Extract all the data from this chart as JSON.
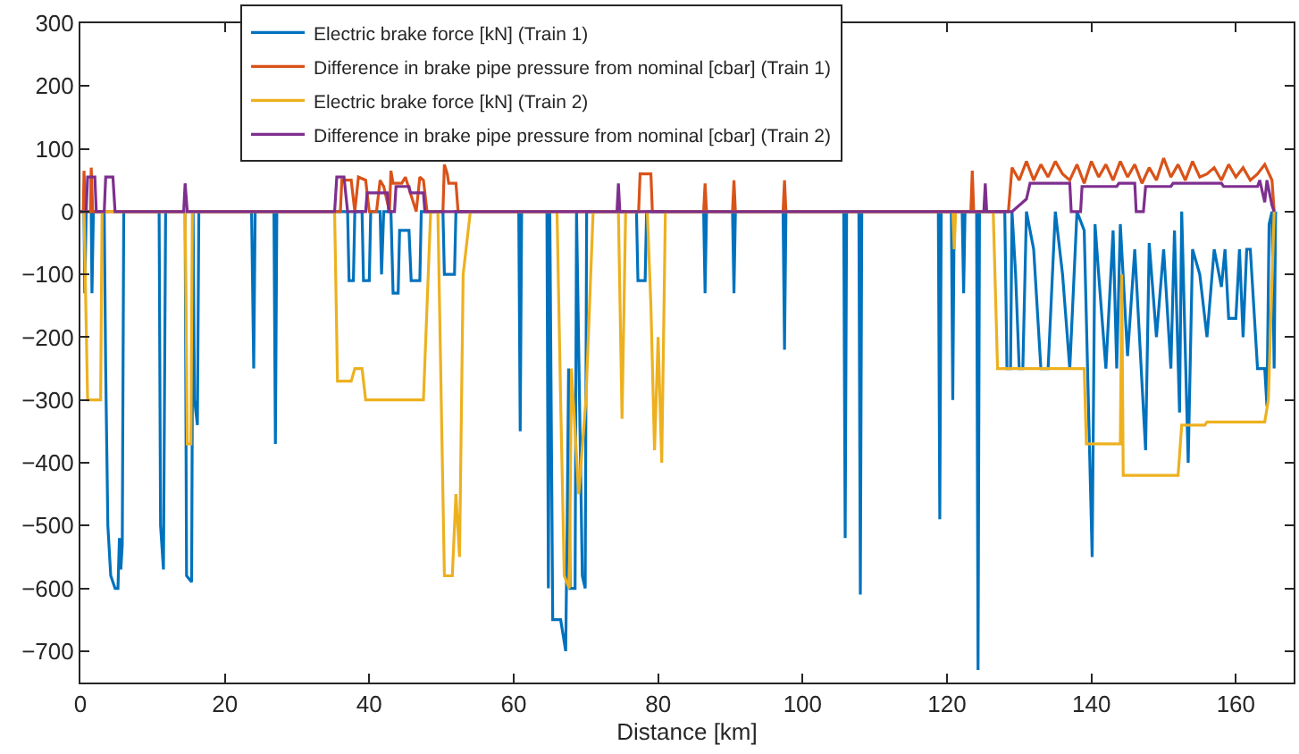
{
  "chart_data": {
    "type": "line",
    "xlabel": "Distance [km]",
    "xlim": [
      0,
      168
    ],
    "xticks": [
      0,
      20,
      40,
      60,
      80,
      100,
      120,
      140,
      160
    ],
    "ylim": [
      -750,
      300
    ],
    "yticks": [
      -700,
      -600,
      -500,
      -400,
      -300,
      -200,
      -100,
      0,
      100,
      200,
      300
    ],
    "grid": false,
    "legend": "top",
    "marker": "none",
    "line_style": "solid",
    "series": [
      {
        "name": "Electric brake force [kN] (Train 1)",
        "color": "#0072bd",
        "x": [
          0,
          0.5,
          0.6,
          0.8,
          1.5,
          1.6,
          1.8,
          3.3,
          3.5,
          3.8,
          4.2,
          4.8,
          5.2,
          5.4,
          5.6,
          5.8,
          6.0,
          10.9,
          11.1,
          11.5,
          11.8,
          14.5,
          14.7,
          15.4,
          15.6,
          15.8,
          16.2,
          16.4,
          23.7,
          24,
          24.2,
          26.8,
          27,
          27.2,
          37,
          37.2,
          37.8,
          38,
          39,
          39.2,
          40,
          40.2,
          41.5,
          41.7,
          42,
          43,
          43.3,
          44,
          44.2,
          45.5,
          45.8,
          47,
          47.2,
          50.2,
          50.4,
          51.8,
          52,
          60.7,
          60.9,
          61.1,
          64.6,
          64.8,
          65.0,
          65.4,
          66.5,
          67.2,
          67.4,
          67.6,
          67.8,
          68.5,
          68.7,
          69.5,
          69.9,
          70.1,
          77.0,
          77.2,
          78.2,
          78.4,
          86.3,
          86.5,
          86.7,
          90.3,
          90.5,
          90.7,
          97.3,
          97.5,
          97.7,
          105.7,
          105.9,
          106.1,
          107.8,
          108,
          108.2,
          118.8,
          119,
          119.2,
          120.6,
          120.8,
          121,
          122.1,
          122.3,
          122.5,
          124.1,
          124.3,
          124.5,
          128,
          128.3,
          128.8,
          129,
          129.5,
          130,
          130.5,
          131,
          132,
          133,
          134,
          135,
          136,
          137,
          138,
          139,
          140.1,
          140.5,
          141,
          142,
          143,
          143.5,
          144,
          145,
          146,
          147.5,
          148,
          149,
          150,
          151,
          151.5,
          152.2,
          152.5,
          153.4,
          154,
          155,
          156,
          157,
          158,
          158.5,
          159,
          160,
          160.5,
          161,
          161.5,
          162,
          163,
          164,
          164.3,
          164.6,
          165,
          165.3,
          165.5
        ],
        "values": [
          0,
          0,
          -130,
          0,
          0,
          -130,
          0,
          0,
          -250,
          -500,
          -580,
          -600,
          -600,
          -520,
          -570,
          -530,
          0,
          0,
          -500,
          -570,
          0,
          0,
          -580,
          -590,
          0,
          -300,
          -340,
          0,
          0,
          -250,
          0,
          0,
          -370,
          0,
          0,
          -110,
          -110,
          0,
          0,
          -110,
          -110,
          0,
          0,
          -100,
          0,
          0,
          -130,
          -130,
          -30,
          -30,
          -110,
          -110,
          0,
          0,
          -100,
          -100,
          0,
          0,
          -350,
          0,
          0,
          -600,
          0,
          -650,
          -650,
          -700,
          -500,
          -250,
          -600,
          -600,
          0,
          -580,
          -600,
          0,
          0,
          -110,
          -110,
          0,
          0,
          -130,
          0,
          0,
          -130,
          0,
          0,
          -220,
          0,
          0,
          -520,
          0,
          0,
          -610,
          0,
          0,
          -490,
          0,
          0,
          -300,
          0,
          0,
          -130,
          0,
          0,
          -730,
          0,
          0,
          -250,
          -250,
          0,
          -100,
          -250,
          -250,
          0,
          -60,
          -250,
          -250,
          0,
          -100,
          -250,
          0,
          -30,
          -550,
          -20,
          -100,
          -250,
          -30,
          -250,
          -20,
          -230,
          -60,
          -380,
          -50,
          -200,
          -60,
          -250,
          -30,
          -320,
          0,
          -400,
          -60,
          -100,
          -200,
          -60,
          -120,
          -60,
          -170,
          -170,
          -60,
          -200,
          -60,
          -60,
          -250,
          -250,
          -310,
          -20,
          0,
          -250,
          0
        ]
      },
      {
        "name": "Difference in brake pipe pressure from nominal [cbar] (Train 1)",
        "color": "#d95319",
        "x": [
          0,
          0.4,
          0.5,
          0.7,
          1.4,
          1.5,
          1.7,
          36,
          36.2,
          37.5,
          38,
          38.5,
          39.5,
          40,
          41,
          41.5,
          42,
          42.8,
          43,
          43.3,
          44.5,
          45,
          46.5,
          47,
          47.5,
          48,
          50.2,
          50.4,
          50.8,
          51,
          52,
          52.3,
          77.3,
          77.5,
          79,
          79.2,
          86.3,
          86.5,
          86.7,
          90.3,
          90.5,
          90.7,
          97.3,
          97.5,
          97.7,
          123.3,
          123.5,
          123.7,
          128.5,
          129,
          130,
          131,
          132,
          133,
          134,
          135,
          136,
          137,
          138,
          139,
          140,
          141,
          142,
          143,
          144,
          145,
          146,
          147,
          148,
          149,
          150,
          151,
          152,
          153,
          154,
          155,
          156,
          157,
          158,
          159,
          160,
          161,
          162,
          163,
          164,
          165,
          165.3
        ],
        "values": [
          0,
          0,
          65,
          0,
          0,
          70,
          0,
          0,
          50,
          50,
          0,
          55,
          50,
          0,
          0,
          50,
          40,
          0,
          65,
          45,
          45,
          55,
          0,
          55,
          50,
          0,
          0,
          75,
          60,
          45,
          45,
          0,
          0,
          60,
          60,
          0,
          0,
          45,
          0,
          0,
          50,
          0,
          0,
          50,
          0,
          0,
          65,
          0,
          0,
          70,
          50,
          80,
          50,
          75,
          55,
          80,
          60,
          50,
          75,
          45,
          80,
          55,
          75,
          50,
          80,
          55,
          75,
          45,
          70,
          50,
          85,
          55,
          75,
          50,
          80,
          55,
          60,
          70,
          50,
          75,
          55,
          70,
          50,
          60,
          75,
          50,
          0
        ]
      },
      {
        "name": "Electric brake force [kN] (Train 2)",
        "color": "#edb120",
        "x": [
          0,
          0.5,
          1,
          2.8,
          3,
          14.5,
          14.8,
          15.3,
          15.5,
          35.2,
          35.6,
          37.5,
          38,
          39,
          39.5,
          47.5,
          48.5,
          49.5,
          50.4,
          51.5,
          52,
          52.5,
          53,
          54,
          66,
          66.5,
          67,
          67.7,
          68,
          69,
          70,
          71,
          74.5,
          75,
          75.5,
          78.5,
          79,
          79.5,
          80,
          80.5,
          81,
          120.8,
          121,
          121.2,
          126.4,
          127,
          139,
          139.3,
          144,
          144.2,
          144.4,
          152,
          152.5,
          155.7,
          156,
          164,
          164.5,
          165.3
        ],
        "values": [
          0,
          0,
          -300,
          -300,
          0,
          0,
          -370,
          -370,
          0,
          0,
          -270,
          -270,
          -250,
          -250,
          -300,
          -300,
          0,
          0,
          -580,
          -580,
          -450,
          -550,
          -100,
          0,
          0,
          -300,
          -580,
          -600,
          -250,
          -450,
          -300,
          0,
          0,
          -330,
          0,
          0,
          -150,
          -380,
          -200,
          -400,
          0,
          0,
          -60,
          0,
          0,
          -250,
          -250,
          -370,
          -370,
          -100,
          -420,
          -420,
          -340,
          -340,
          -335,
          -335,
          -300,
          0
        ]
      },
      {
        "name": "Difference in brake pipe pressure from nominal [cbar] (Train 2)",
        "color": "#7e2f8e",
        "x": [
          0,
          0.8,
          1,
          2,
          2.2,
          3.3,
          3.5,
          4.5,
          4.8,
          14.3,
          14.5,
          14.8,
          35.2,
          35.5,
          36.5,
          37,
          39.5,
          39.7,
          42.5,
          42.7,
          43.5,
          43.7,
          45.5,
          45.7,
          47.5,
          47.7,
          74.3,
          74.5,
          74.7,
          125.1,
          125.3,
          125.5,
          128.5,
          129,
          131,
          131.5,
          137,
          137.2,
          138.5,
          138.7,
          143.5,
          143.8,
          146,
          146.2,
          147.2,
          147.5,
          151,
          151.3,
          158,
          158.3,
          163,
          163.3,
          164,
          164.3,
          165,
          165.3
        ],
        "values": [
          0,
          0,
          55,
          55,
          0,
          0,
          55,
          55,
          0,
          0,
          45,
          0,
          0,
          55,
          55,
          0,
          0,
          30,
          30,
          0,
          0,
          40,
          40,
          30,
          30,
          0,
          0,
          45,
          0,
          0,
          45,
          0,
          0,
          0,
          20,
          45,
          45,
          0,
          0,
          40,
          40,
          45,
          45,
          0,
          0,
          40,
          40,
          45,
          45,
          40,
          40,
          50,
          15,
          50,
          10,
          0
        ]
      }
    ]
  }
}
